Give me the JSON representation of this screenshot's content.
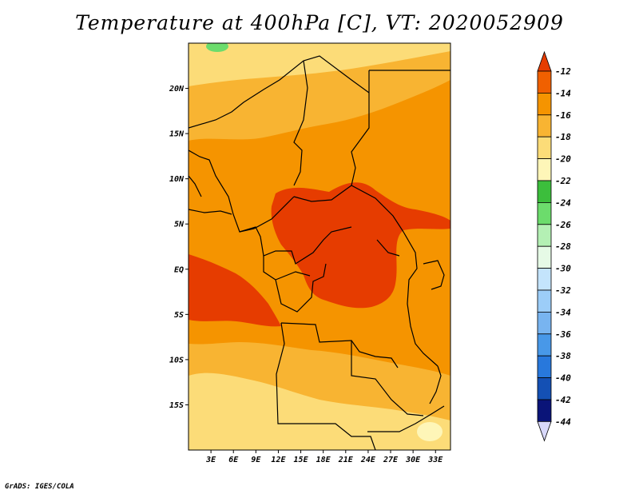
{
  "chart_data": {
    "type": "heatmap",
    "title": "Temperature at 400hPa [C], VT: 2020052909",
    "variable": "Temperature",
    "level": "400hPa",
    "units": "C",
    "valid_time": "2020052909",
    "x_ticks": [
      "3E",
      "6E",
      "9E",
      "12E",
      "15E",
      "18E",
      "21E",
      "24E",
      "27E",
      "30E",
      "33E"
    ],
    "y_ticks": [
      "20N",
      "15N",
      "10N",
      "5N",
      "EQ",
      "5S",
      "10S",
      "15S"
    ],
    "x_tick_values": [
      3,
      6,
      9,
      12,
      15,
      18,
      21,
      24,
      27,
      30,
      33
    ],
    "y_tick_values": [
      20,
      15,
      10,
      5,
      0,
      -5,
      -10,
      -15
    ],
    "xlim": [
      0,
      35
    ],
    "ylim": [
      -20,
      25
    ],
    "colorbar": {
      "labels": [
        "-12",
        "-14",
        "-16",
        "-18",
        "-20",
        "-22",
        "-24",
        "-26",
        "-28",
        "-30",
        "-32",
        "-34",
        "-36",
        "-38",
        "-40",
        "-42",
        "-44"
      ],
      "colors": [
        "#e63c00",
        "#f06000",
        "#f59400",
        "#f8b432",
        "#fcdc78",
        "#fef6b8",
        "#3cbe3c",
        "#6cdc6c",
        "#b4f0b4",
        "#e6fae6",
        "#c4e4fc",
        "#9ccdf8",
        "#78b4f0",
        "#4898e8",
        "#2878dc",
        "#1450b4",
        "#0a1478"
      ],
      "extend_low_color": "#d8d8fa"
    },
    "field_regions": [
      {
        "range": "-18 to -20",
        "description": "far north and far south-west"
      },
      {
        "range": "-16 to -18",
        "description": "Sahel belt and southern Africa"
      },
      {
        "range": "-14 to -16",
        "description": "broad central belt"
      },
      {
        "range": "-12 to -14",
        "description": "Central African Republic, Congo basin, Gulf of Guinea coast"
      },
      {
        "range": "-22 to -24",
        "description": "small patch at top-left"
      }
    ]
  },
  "footer": {
    "credit": "GrADS: IGES/COLA"
  }
}
